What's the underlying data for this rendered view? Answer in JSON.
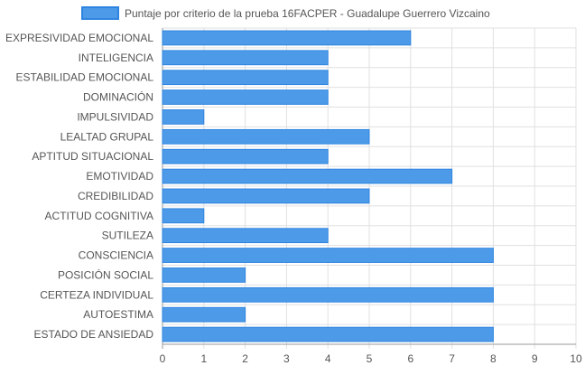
{
  "chart_data": {
    "type": "bar",
    "orientation": "horizontal",
    "categories": [
      "EXPRESIVIDAD EMOCIONAL",
      "INTELIGENCIA",
      "ESTABILIDAD EMOCIONAL",
      "DOMINACIÓN",
      "IMPULSIVIDAD",
      "LEALTAD GRUPAL",
      "APTITUD SITUACIONAL",
      "EMOTIVIDAD",
      "CREDIBILIDAD",
      "ACTITUD COGNITIVA",
      "SUTILEZA",
      "CONSCIENCIA",
      "POSICIÓN SOCIAL",
      "CERTEZA INDIVIDUAL",
      "AUTOESTIMA",
      "ESTADO DE ANSIEDAD"
    ],
    "series": [
      {
        "name": "Puntaje por criterio de la prueba 16FACPER - Guadalupe Guerrero Vizcaino",
        "values": [
          6,
          4,
          4,
          4,
          1,
          5,
          4,
          7,
          5,
          1,
          4,
          8,
          2,
          8,
          2,
          8
        ],
        "color": "#4d9be8",
        "border_color": "#2f84e0"
      }
    ],
    "xlim": [
      0,
      10
    ],
    "x_ticks": [
      "0",
      "1",
      "2",
      "3",
      "4",
      "5",
      "6",
      "7",
      "8",
      "9",
      "10"
    ],
    "grid": true,
    "legend_position": "top",
    "grid_color": "#e0e0e0",
    "axis_color": "#9a9a9a",
    "text_color": "#555555"
  }
}
